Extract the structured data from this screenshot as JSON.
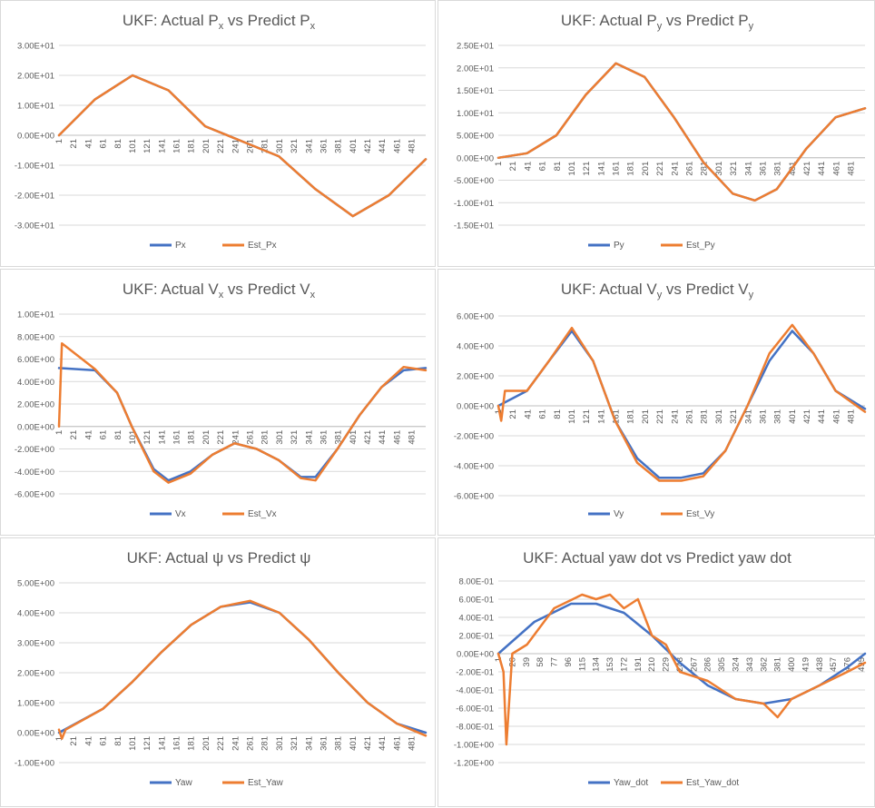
{
  "charts": [
    {
      "title_main": "UKF: Actual P",
      "title_sub1": "x",
      "title_mid": " vs Predict P",
      "title_sub2": "x",
      "ytick_labels": [
        "3.00E+01",
        "2.00E+01",
        "1.00E+01",
        "0.00E+00",
        "-1.00E+01",
        "-2.00E+01",
        "-3.00E+01"
      ],
      "xtick_labels": [
        "1",
        "21",
        "41",
        "61",
        "81",
        "101",
        "121",
        "141",
        "161",
        "181",
        "201",
        "221",
        "241",
        "261",
        "281",
        "301",
        "321",
        "341",
        "361",
        "381",
        "401",
        "421",
        "441",
        "461",
        "481"
      ],
      "legend": [
        "Px",
        "Est_Px"
      ]
    },
    {
      "title_main": "UKF: Actual P",
      "title_sub1": "y",
      "title_mid": " vs Predict P",
      "title_sub2": "y",
      "ytick_labels": [
        "2.50E+01",
        "2.00E+01",
        "1.50E+01",
        "1.00E+01",
        "5.00E+00",
        "0.00E+00",
        "-5.00E+00",
        "-1.00E+01",
        "-1.50E+01"
      ],
      "xtick_labels": [
        "1",
        "21",
        "41",
        "61",
        "81",
        "101",
        "121",
        "141",
        "161",
        "181",
        "201",
        "221",
        "241",
        "261",
        "281",
        "301",
        "321",
        "341",
        "361",
        "381",
        "401",
        "421",
        "441",
        "461",
        "481"
      ],
      "legend": [
        "Py",
        "Est_Py"
      ]
    },
    {
      "title_main": "UKF: Actual V",
      "title_sub1": "x",
      "title_mid": " vs Predict V",
      "title_sub2": "x",
      "ytick_labels": [
        "1.00E+01",
        "8.00E+00",
        "6.00E+00",
        "4.00E+00",
        "2.00E+00",
        "0.00E+00",
        "-2.00E+00",
        "-4.00E+00",
        "-6.00E+00"
      ],
      "xtick_labels": [
        "1",
        "21",
        "41",
        "61",
        "81",
        "101",
        "121",
        "141",
        "161",
        "181",
        "201",
        "221",
        "241",
        "261",
        "281",
        "301",
        "321",
        "341",
        "361",
        "381",
        "401",
        "421",
        "441",
        "461",
        "481"
      ],
      "legend": [
        "Vx",
        "Est_Vx"
      ]
    },
    {
      "title_main": "UKF: Actual V",
      "title_sub1": "y",
      "title_mid": " vs Predict V",
      "title_sub2": "y",
      "ytick_labels": [
        "6.00E+00",
        "4.00E+00",
        "2.00E+00",
        "0.00E+00",
        "-2.00E+00",
        "-4.00E+00",
        "-6.00E+00"
      ],
      "xtick_labels": [
        "1",
        "21",
        "41",
        "61",
        "81",
        "101",
        "121",
        "141",
        "161",
        "181",
        "201",
        "221",
        "241",
        "261",
        "281",
        "301",
        "321",
        "341",
        "361",
        "381",
        "401",
        "421",
        "441",
        "461",
        "481"
      ],
      "legend": [
        "Vy",
        "Est_Vy"
      ]
    },
    {
      "title_main": "UKF: Actual ψ vs Predict ψ",
      "title_sub1": "",
      "title_mid": "",
      "title_sub2": "",
      "ytick_labels": [
        "5.00E+00",
        "4.00E+00",
        "3.00E+00",
        "2.00E+00",
        "1.00E+00",
        "0.00E+00",
        "-1.00E+00"
      ],
      "xtick_labels": [
        "1",
        "21",
        "41",
        "61",
        "81",
        "101",
        "121",
        "141",
        "161",
        "181",
        "201",
        "221",
        "241",
        "261",
        "281",
        "301",
        "321",
        "341",
        "361",
        "381",
        "401",
        "421",
        "441",
        "461",
        "481"
      ],
      "legend": [
        "Yaw",
        "Est_Yaw"
      ]
    },
    {
      "title_main": "UKF: Actual yaw dot vs Predict yaw dot",
      "title_sub1": "",
      "title_mid": "",
      "title_sub2": "",
      "ytick_labels": [
        "8.00E-01",
        "6.00E-01",
        "4.00E-01",
        "2.00E-01",
        "0.00E+00",
        "-2.00E-01",
        "-4.00E-01",
        "-6.00E-01",
        "-8.00E-01",
        "-1.00E+00",
        "-1.20E+00"
      ],
      "xtick_labels": [
        "1",
        "20",
        "39",
        "58",
        "77",
        "96",
        "115",
        "134",
        "153",
        "172",
        "191",
        "210",
        "229",
        "248",
        "267",
        "286",
        "305",
        "324",
        "343",
        "362",
        "381",
        "400",
        "419",
        "438",
        "457",
        "476",
        "495"
      ],
      "legend": [
        "Yaw_dot",
        "Est_Yaw_dot"
      ]
    }
  ],
  "colors": {
    "actual": "#4472c4",
    "estimate": "#ed7d31",
    "grid": "#d9d9d9",
    "text": "#595959"
  },
  "chart_data": [
    {
      "type": "line",
      "title": "UKF: Actual Px vs Predict Px",
      "x_range": [
        1,
        500
      ],
      "ylim": [
        -30,
        30
      ],
      "grid": true,
      "legend_position": "bottom",
      "series": [
        {
          "name": "Px",
          "x": [
            1,
            50,
            101,
            150,
            200,
            250,
            300,
            350,
            401,
            450,
            500
          ],
          "y": [
            0,
            12,
            20,
            15,
            3,
            -2,
            -7,
            -18,
            -27,
            -20,
            -8
          ]
        },
        {
          "name": "Est_Px",
          "x": [
            1,
            50,
            101,
            150,
            200,
            250,
            300,
            350,
            401,
            450,
            500
          ],
          "y": [
            0,
            12,
            20,
            15,
            3,
            -2,
            -7,
            -18,
            -27,
            -20,
            -8
          ]
        }
      ]
    },
    {
      "type": "line",
      "title": "UKF: Actual Py vs Predict Py",
      "x_range": [
        1,
        500
      ],
      "ylim": [
        -15,
        25
      ],
      "grid": true,
      "legend_position": "bottom",
      "series": [
        {
          "name": "Py",
          "x": [
            1,
            40,
            80,
            120,
            161,
            200,
            240,
            280,
            320,
            350,
            380,
            420,
            460,
            500
          ],
          "y": [
            0,
            1,
            5,
            14,
            21,
            18,
            9,
            -1,
            -8,
            -9.5,
            -7,
            2,
            9,
            11
          ]
        },
        {
          "name": "Est_Py",
          "x": [
            1,
            40,
            80,
            120,
            161,
            200,
            240,
            280,
            320,
            350,
            380,
            420,
            460,
            500
          ],
          "y": [
            0,
            1,
            5,
            14,
            21,
            18,
            9,
            -1,
            -8,
            -9.5,
            -7,
            2,
            9,
            11
          ]
        }
      ]
    },
    {
      "type": "line",
      "title": "UKF: Actual Vx vs Predict Vx",
      "x_range": [
        1,
        500
      ],
      "ylim": [
        -6,
        10
      ],
      "grid": true,
      "legend_position": "bottom",
      "series": [
        {
          "name": "Vx",
          "x": [
            1,
            50,
            80,
            100,
            130,
            150,
            180,
            210,
            240,
            270,
            300,
            330,
            350,
            380,
            410,
            440,
            470,
            500
          ],
          "y": [
            5.2,
            5,
            3,
            0,
            -3.8,
            -4.8,
            -4,
            -2.5,
            -1.5,
            -2,
            -3,
            -4.5,
            -4.5,
            -2,
            1,
            3.5,
            5,
            5.2
          ]
        },
        {
          "name": "Est_Vx",
          "x": [
            1,
            5,
            50,
            80,
            100,
            130,
            150,
            180,
            210,
            240,
            270,
            300,
            330,
            350,
            380,
            410,
            440,
            470,
            500
          ],
          "y": [
            0,
            7.4,
            5.1,
            3,
            0,
            -4,
            -5,
            -4.2,
            -2.5,
            -1.5,
            -2,
            -3,
            -4.6,
            -4.8,
            -2,
            1,
            3.5,
            5.3,
            5
          ]
        }
      ]
    },
    {
      "type": "line",
      "title": "UKF: Actual Vy vs Predict Vy",
      "x_range": [
        1,
        500
      ],
      "ylim": [
        -6,
        6
      ],
      "grid": true,
      "legend_position": "bottom",
      "series": [
        {
          "name": "Vy",
          "x": [
            1,
            40,
            70,
            101,
            130,
            160,
            190,
            220,
            250,
            280,
            310,
            340,
            370,
            401,
            430,
            460,
            500
          ],
          "y": [
            0,
            1,
            3,
            5,
            3,
            -1,
            -3.5,
            -4.8,
            -4.8,
            -4.5,
            -3,
            0,
            3,
            5,
            3.5,
            1,
            -0.2
          ]
        },
        {
          "name": "Est_Vy",
          "x": [
            1,
            5,
            10,
            40,
            70,
            101,
            130,
            160,
            190,
            220,
            250,
            280,
            310,
            340,
            370,
            401,
            430,
            460,
            500
          ],
          "y": [
            0,
            -1,
            1,
            1,
            3,
            5.2,
            3,
            -1,
            -3.8,
            -5,
            -5,
            -4.7,
            -3,
            0,
            3.5,
            5.4,
            3.5,
            1,
            -0.4
          ]
        }
      ]
    },
    {
      "type": "line",
      "title": "UKF: Actual ψ vs Predict ψ",
      "x_range": [
        1,
        500
      ],
      "ylim": [
        -1,
        5
      ],
      "grid": true,
      "legend_position": "bottom",
      "series": [
        {
          "name": "Yaw",
          "x": [
            1,
            61,
            101,
            141,
            181,
            221,
            261,
            301,
            341,
            381,
            421,
            461,
            500
          ],
          "y": [
            0,
            0.8,
            1.7,
            2.7,
            3.6,
            4.2,
            4.35,
            4,
            3.1,
            2,
            1,
            0.3,
            0
          ]
        },
        {
          "name": "Est_Yaw",
          "x": [
            1,
            5,
            10,
            61,
            101,
            141,
            181,
            221,
            261,
            301,
            341,
            381,
            421,
            461,
            500
          ],
          "y": [
            0.1,
            -0.2,
            0.1,
            0.8,
            1.7,
            2.7,
            3.6,
            4.2,
            4.4,
            4,
            3.1,
            2,
            1,
            0.3,
            -0.1
          ]
        }
      ]
    },
    {
      "type": "line",
      "title": "UKF: Actual yaw dot vs Predict yaw dot",
      "x_range": [
        1,
        500
      ],
      "ylim": [
        -1.2,
        0.8
      ],
      "grid": true,
      "legend_position": "bottom",
      "series": [
        {
          "name": "Yaw_dot",
          "x": [
            1,
            50,
            100,
            134,
            172,
            210,
            248,
            286,
            324,
            362,
            400,
            438,
            476,
            500
          ],
          "y": [
            0,
            0.35,
            0.55,
            0.55,
            0.45,
            0.2,
            -0.1,
            -0.35,
            -0.5,
            -0.55,
            -0.5,
            -0.35,
            -0.15,
            0
          ]
        },
        {
          "name": "Est_Yaw_dot",
          "x": [
            1,
            8,
            12,
            20,
            40,
            77,
            115,
            134,
            153,
            172,
            191,
            210,
            229,
            248,
            286,
            324,
            362,
            381,
            400,
            438,
            476,
            500
          ],
          "y": [
            0,
            -0.2,
            -1,
            0,
            0.1,
            0.5,
            0.65,
            0.6,
            0.65,
            0.5,
            0.6,
            0.2,
            0.1,
            -0.2,
            -0.3,
            -0.5,
            -0.55,
            -0.7,
            -0.5,
            -0.35,
            -0.2,
            -0.1
          ]
        }
      ]
    }
  ]
}
